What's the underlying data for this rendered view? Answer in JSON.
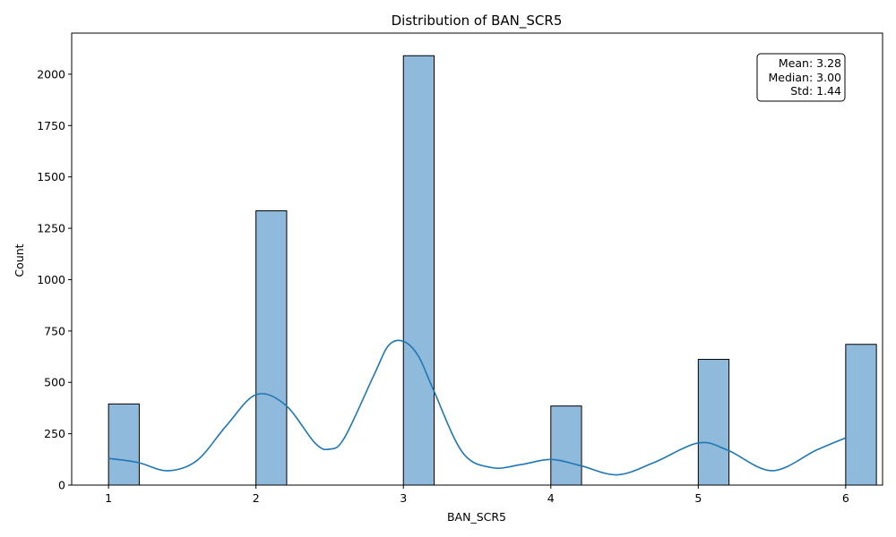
{
  "chart_data": {
    "type": "bar",
    "title": "Distribution of BAN_SCR5",
    "xlabel": "BAN_SCR5",
    "ylabel": "Count",
    "xlim": [
      0.75,
      6.25
    ],
    "ylim": [
      0,
      2200
    ],
    "x_ticks": [
      1,
      2,
      3,
      4,
      5,
      6
    ],
    "y_ticks": [
      0,
      250,
      500,
      750,
      1000,
      1250,
      1500,
      1750,
      2000
    ],
    "bin_width": 0.2083,
    "bars": [
      {
        "x": 1,
        "value": 395
      },
      {
        "x": 2,
        "value": 1335
      },
      {
        "x": 3,
        "value": 2090
      },
      {
        "x": 4,
        "value": 385
      },
      {
        "x": 5,
        "value": 612
      },
      {
        "x": 6,
        "value": 685
      }
    ],
    "kde": {
      "x": [
        1.0,
        1.2,
        1.4,
        1.6,
        1.8,
        2.0,
        2.2,
        2.4,
        2.5,
        2.6,
        2.8,
        2.9,
        3.0,
        3.1,
        3.2,
        3.4,
        3.6,
        3.8,
        4.0,
        4.2,
        4.45,
        4.7,
        5.0,
        5.2,
        5.5,
        5.8,
        6.0
      ],
      "y": [
        130,
        110,
        70,
        120,
        290,
        440,
        390,
        205,
        175,
        230,
        535,
        680,
        700,
        630,
        470,
        160,
        85,
        100,
        125,
        95,
        50,
        110,
        205,
        170,
        70,
        170,
        230
      ]
    },
    "bar_color": "#8fbadb",
    "bar_edge_color": "#000000",
    "kde_color": "#1f77b4",
    "grid": false,
    "stats_box": {
      "placement": "top-right",
      "lines": [
        "Mean: 3.28",
        "Median: 3.00",
        "Std: 1.44"
      ]
    }
  }
}
